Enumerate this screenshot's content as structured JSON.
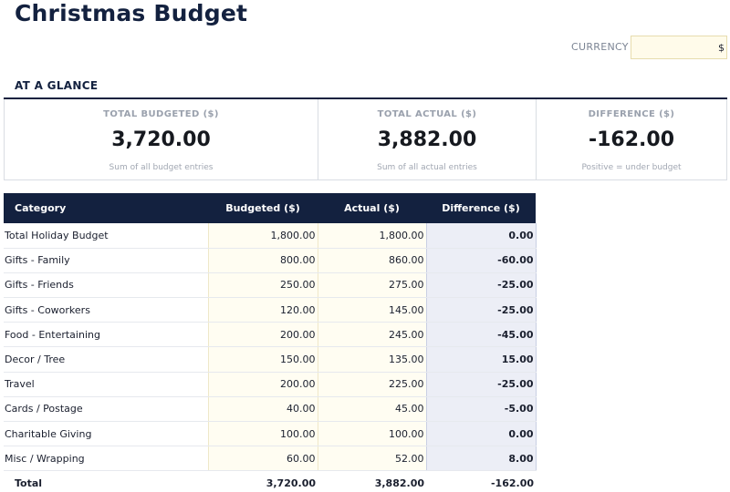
{
  "title": "Christmas Budget",
  "currency": {
    "label": "CURRENCY",
    "value": "$"
  },
  "glance": {
    "heading": "AT A GLANCE",
    "cards": [
      {
        "label": "TOTAL BUDGETED ($)",
        "value": "3,720.00",
        "note": "Sum of all budget entries"
      },
      {
        "label": "TOTAL ACTUAL ($)",
        "value": "3,882.00",
        "note": "Sum of all actual entries"
      },
      {
        "label": "DIFFERENCE ($)",
        "value": "-162.00",
        "note": "Positive = under budget"
      }
    ]
  },
  "table": {
    "headers": [
      "Category",
      "Budgeted ($)",
      "Actual ($)",
      "Difference ($)"
    ],
    "rows": [
      {
        "category": "Total Holiday Budget",
        "budgeted": "1,800.00",
        "actual": "1,800.00",
        "difference": "0.00"
      },
      {
        "category": "Gifts - Family",
        "budgeted": "800.00",
        "actual": "860.00",
        "difference": "-60.00"
      },
      {
        "category": "Gifts - Friends",
        "budgeted": "250.00",
        "actual": "275.00",
        "difference": "-25.00"
      },
      {
        "category": "Gifts - Coworkers",
        "budgeted": "120.00",
        "actual": "145.00",
        "difference": "-25.00"
      },
      {
        "category": "Food - Entertaining",
        "budgeted": "200.00",
        "actual": "245.00",
        "difference": "-45.00"
      },
      {
        "category": "Decor / Tree",
        "budgeted": "150.00",
        "actual": "135.00",
        "difference": "15.00"
      },
      {
        "category": "Travel",
        "budgeted": "200.00",
        "actual": "225.00",
        "difference": "-25.00"
      },
      {
        "category": "Cards / Postage",
        "budgeted": "40.00",
        "actual": "45.00",
        "difference": "-5.00"
      },
      {
        "category": "Charitable Giving",
        "budgeted": "100.00",
        "actual": "100.00",
        "difference": "0.00"
      },
      {
        "category": "Misc / Wrapping",
        "budgeted": "60.00",
        "actual": "52.00",
        "difference": "8.00"
      }
    ],
    "total": {
      "label": "Total",
      "budgeted": "3,720.00",
      "actual": "3,882.00",
      "difference": "-162.00"
    }
  }
}
